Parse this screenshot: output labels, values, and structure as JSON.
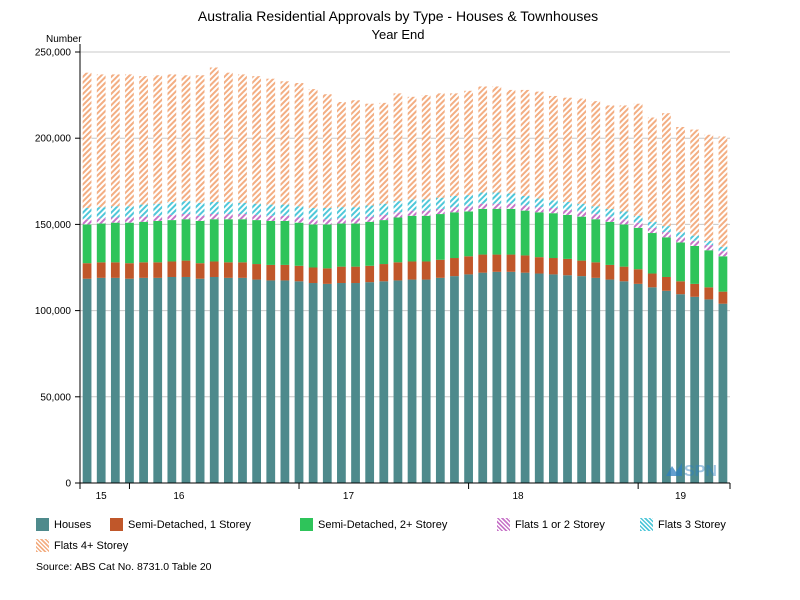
{
  "chart_data": {
    "type": "bar",
    "stacked": true,
    "title": "Australia Residential Approvals by Type - Houses & Townhouses",
    "subtitle": "Year End",
    "ylabel": "Number",
    "xlabel": "",
    "ylim": [
      0,
      250000
    ],
    "yticks": [
      0,
      50000,
      100000,
      150000,
      200000,
      250000
    ],
    "ytick_labels": [
      "0",
      "50,000",
      "100,000",
      "150,000",
      "200,000",
      "250,000"
    ],
    "grid": true,
    "legend_position": "bottom",
    "year_labels": [
      {
        "label": "15",
        "index": 1
      },
      {
        "label": "16",
        "index": 6.5
      },
      {
        "label": "17",
        "index": 18.5
      },
      {
        "label": "18",
        "index": 30.5
      },
      {
        "label": "19",
        "index": 42
      }
    ],
    "year_boundaries": [
      3.5,
      15.5,
      27.5,
      39.5
    ],
    "watermark": "SPN",
    "series": [
      {
        "name": "Houses",
        "color": "#4e8a8c",
        "pattern": "solid",
        "values": [
          118500,
          119000,
          119000,
          118500,
          119000,
          119000,
          119500,
          119500,
          118500,
          119500,
          119000,
          119000,
          118000,
          117500,
          117500,
          117000,
          116000,
          115500,
          116000,
          116000,
          116500,
          117000,
          117500,
          118000,
          118000,
          119000,
          120000,
          121000,
          122000,
          122500,
          122500,
          122000,
          121500,
          121000,
          120500,
          120000,
          119000,
          118000,
          117000,
          115500,
          113500,
          111500,
          109500,
          108000,
          106500,
          104000
        ]
      },
      {
        "name": "Semi-Detached, 1 Storey",
        "color": "#c0572a",
        "pattern": "solid",
        "values": [
          9000,
          9000,
          9000,
          9000,
          9000,
          9000,
          9000,
          9500,
          9000,
          9000,
          9000,
          9000,
          9000,
          9000,
          9000,
          9000,
          9000,
          9000,
          9500,
          9500,
          9500,
          10000,
          10500,
          10500,
          10500,
          10500,
          10500,
          10500,
          10500,
          10000,
          10000,
          10000,
          9500,
          9500,
          9500,
          9000,
          9000,
          8500,
          8500,
          8500,
          8000,
          8000,
          7500,
          7500,
          7000,
          7000
        ]
      },
      {
        "name": "Semi-Detached, 2+ Storey",
        "color": "#2ec45a",
        "pattern": "solid",
        "values": [
          22500,
          22500,
          23000,
          23500,
          23500,
          24000,
          24000,
          24000,
          24500,
          24500,
          25000,
          25000,
          25500,
          25500,
          25500,
          25000,
          25000,
          25500,
          25000,
          25000,
          25500,
          25500,
          26000,
          26500,
          26500,
          26500,
          26500,
          26000,
          26500,
          26500,
          26500,
          26000,
          26000,
          26000,
          25500,
          25500,
          25000,
          25000,
          24500,
          24000,
          23500,
          23000,
          22500,
          22000,
          21500,
          20500
        ]
      },
      {
        "name": "Flats 1 or 2 Storey",
        "color": "#c774c8",
        "pattern": "hatch",
        "values": [
          3000,
          3000,
          3000,
          3000,
          3000,
          3000,
          3000,
          3000,
          3000,
          3000,
          3000,
          3000,
          3000,
          3000,
          3000,
          3000,
          3000,
          3000,
          3000,
          3000,
          3000,
          3000,
          3000,
          3000,
          3000,
          3000,
          3000,
          3000,
          3000,
          3000,
          3000,
          3000,
          3000,
          3000,
          3000,
          3000,
          3000,
          3000,
          3000,
          3000,
          3000,
          3000,
          3000,
          3000,
          3000,
          3000
        ]
      },
      {
        "name": "Flats 3 Storey",
        "color": "#4fc7d9",
        "pattern": "hatch",
        "values": [
          6500,
          6500,
          6500,
          6500,
          7000,
          7000,
          7500,
          7500,
          7500,
          7000,
          7000,
          6500,
          6500,
          6500,
          6500,
          6500,
          6500,
          6500,
          6500,
          6500,
          6500,
          6500,
          6500,
          6500,
          6500,
          6500,
          6500,
          6500,
          6500,
          6500,
          6000,
          5500,
          5000,
          4500,
          4500,
          4500,
          4500,
          4500,
          4500,
          4000,
          3500,
          3500,
          3000,
          3000,
          2500,
          2500
        ]
      },
      {
        "name": "Flats 4+ Storey",
        "color": "#f3ae83",
        "pattern": "hatch",
        "values": [
          78500,
          77000,
          76500,
          76500,
          74500,
          74500,
          74000,
          73000,
          74000,
          78000,
          75000,
          74500,
          74000,
          73000,
          71500,
          71500,
          69000,
          66000,
          61000,
          62000,
          59000,
          58500,
          62500,
          59500,
          60500,
          60500,
          59500,
          60500,
          61500,
          61500,
          60000,
          61500,
          62000,
          60500,
          60500,
          61000,
          61000,
          60000,
          61500,
          65000,
          60500,
          65500,
          61000,
          61500,
          61500,
          64000
        ]
      }
    ],
    "categories_count": 46
  },
  "source": "Source: ABS Cat No. 8731.0 Table 20"
}
